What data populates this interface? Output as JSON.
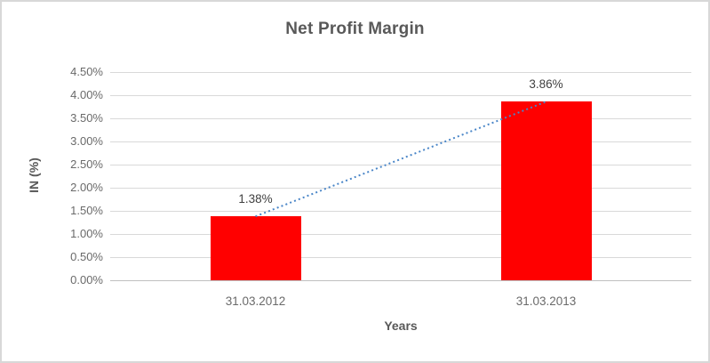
{
  "chart_data": {
    "type": "bar",
    "title": "Net Profit Margin",
    "xlabel": "Years",
    "ylabel": "IN (%)",
    "categories": [
      "31.03.2012",
      "31.03.2013"
    ],
    "values": [
      1.38,
      3.86
    ],
    "data_labels": [
      "1.38%",
      "3.86%"
    ],
    "y_tick_values": [
      0,
      0.5,
      1.0,
      1.5,
      2.0,
      2.5,
      3.0,
      3.5,
      4.0,
      4.5
    ],
    "y_tick_labels": [
      "0.00%",
      "0.50%",
      "1.00%",
      "1.50%",
      "2.00%",
      "2.50%",
      "3.00%",
      "3.50%",
      "4.00%",
      "4.50%"
    ],
    "ylim": [
      0,
      4.5
    ],
    "grid": true,
    "legend": "none",
    "bar_color": "#ff0000",
    "trendline": {
      "style": "dotted",
      "color": "#4a86c8",
      "from_value": 1.38,
      "to_value": 3.86
    }
  },
  "colors": {
    "title_text": "#595959",
    "axis_text": "#6a6a6a",
    "data_label_text": "#404040",
    "gridline": "#d9d9d9",
    "axis_line": "#c0c0c0",
    "border": "#d8d8d8",
    "background": "#ffffff"
  }
}
